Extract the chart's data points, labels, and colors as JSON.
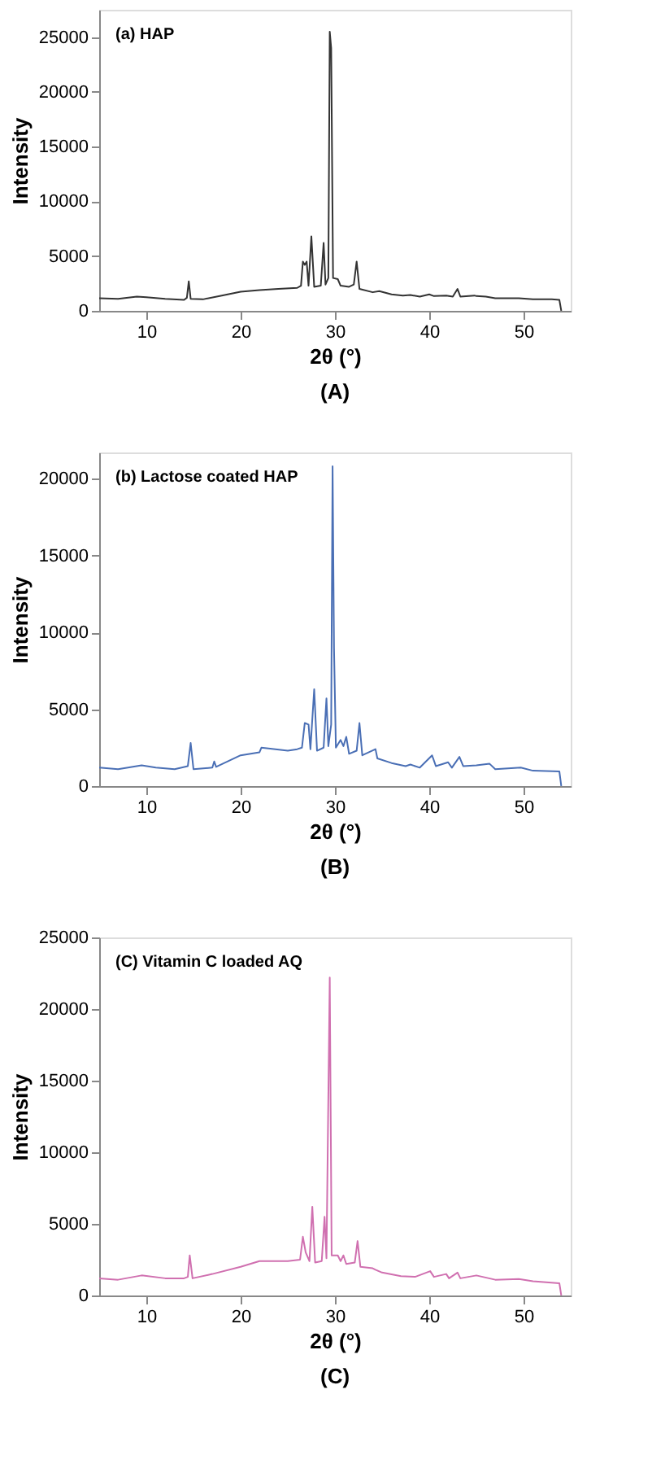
{
  "chart_data": [
    {
      "type": "line",
      "title": "(a) HAP",
      "xlabel": "2θ (°)",
      "ylabel": "Intensity",
      "annotations": [
        "(A)"
      ],
      "xlim": [
        5,
        55
      ],
      "ylim": [
        0,
        27500
      ],
      "xticks": [
        10,
        20,
        30,
        40,
        50
      ],
      "yticks": [
        0,
        5000,
        10000,
        15000,
        20000,
        25000
      ],
      "grid": false,
      "x": [
        5,
        7,
        9,
        10,
        12,
        14,
        14.3,
        14.5,
        14.7,
        16,
        18,
        20,
        22,
        24,
        26,
        26.4,
        26.6,
        26.8,
        27.0,
        27.2,
        27.5,
        27.8,
        28.5,
        28.8,
        29.0,
        29.3,
        29.45,
        29.6,
        29.8,
        30.3,
        30.6,
        31.5,
        32.0,
        32.3,
        32.6,
        34,
        34.7,
        36,
        37.2,
        38,
        39,
        40,
        40.5,
        41.8,
        42.5,
        43,
        43.3,
        44.8,
        45,
        46,
        47,
        49.5,
        51,
        53,
        53.8,
        54
      ],
      "series": [
        {
          "color": "#333333",
          "values": [
            1150,
            1100,
            1300,
            1250,
            1100,
            1000,
            1200,
            2700,
            1100,
            1050,
            1400,
            1750,
            1900,
            2000,
            2100,
            2300,
            4500,
            4200,
            4500,
            2300,
            6800,
            2200,
            2300,
            6200,
            2400,
            3000,
            25500,
            24000,
            3000,
            2900,
            2300,
            2200,
            2400,
            4500,
            2000,
            1700,
            1800,
            1500,
            1400,
            1450,
            1300,
            1500,
            1350,
            1400,
            1300,
            2000,
            1300,
            1400,
            1350,
            1300,
            1150,
            1150,
            1050,
            1050,
            1000,
            0
          ]
        }
      ]
    },
    {
      "type": "line",
      "title": "(b) Lactose coated HAP",
      "xlabel": "2θ (°)",
      "ylabel": "Intensity",
      "annotations": [
        "(B)"
      ],
      "xlim": [
        5,
        55
      ],
      "ylim": [
        0,
        21700
      ],
      "xticks": [
        10,
        20,
        30,
        40,
        50
      ],
      "yticks": [
        0,
        5000,
        10000,
        15000,
        20000
      ],
      "grid": false,
      "x": [
        5,
        7,
        9.5,
        11,
        13,
        14.4,
        14.7,
        15,
        17,
        17.2,
        17.4,
        20,
        22,
        22.2,
        25,
        26,
        26.5,
        26.8,
        27.2,
        27.4,
        27.8,
        28.1,
        28.8,
        29.1,
        29.3,
        29.6,
        29.75,
        29.9,
        30.1,
        30.6,
        30.9,
        31.2,
        31.5,
        32.3,
        32.6,
        32.9,
        34.3,
        34.5,
        36,
        37.5,
        38,
        39,
        40.3,
        40.7,
        42,
        42.4,
        43.2,
        43.6,
        45,
        46.4,
        47,
        49.7,
        51,
        53.8,
        54
      ],
      "series": [
        {
          "color": "#4a6fb5",
          "values": [
            1200,
            1100,
            1350,
            1200,
            1100,
            1300,
            2800,
            1100,
            1200,
            1600,
            1250,
            2000,
            2200,
            2500,
            2300,
            2400,
            2500,
            4100,
            4000,
            2400,
            6300,
            2300,
            2500,
            5700,
            2600,
            4000,
            20800,
            9000,
            2500,
            3000,
            2600,
            3200,
            2100,
            2300,
            4100,
            2000,
            2400,
            1800,
            1500,
            1300,
            1400,
            1200,
            2000,
            1300,
            1550,
            1200,
            1900,
            1300,
            1350,
            1450,
            1100,
            1200,
            1000,
            950,
            0
          ]
        }
      ]
    },
    {
      "type": "line",
      "title": "(C) Vitamin C loaded AQ",
      "xlabel": "2θ (°)",
      "ylabel": "Intensity",
      "annotations": [
        "(C)"
      ],
      "xlim": [
        5,
        55
      ],
      "ylim": [
        0,
        25000
      ],
      "xticks": [
        10,
        20,
        30,
        40,
        50
      ],
      "yticks": [
        0,
        5000,
        10000,
        15000,
        20000,
        25000
      ],
      "grid": false,
      "x": [
        5,
        7,
        9.5,
        12,
        14,
        14.4,
        14.6,
        14.9,
        17,
        20,
        22,
        25,
        26.3,
        26.6,
        26.9,
        27.3,
        27.6,
        27.9,
        28.6,
        28.9,
        29.1,
        29.45,
        29.65,
        30.3,
        30.6,
        30.9,
        31.2,
        32.1,
        32.4,
        32.7,
        34,
        34.3,
        35,
        37,
        38.5,
        40.1,
        40.5,
        41.8,
        42.1,
        43,
        43.3,
        45,
        47,
        49.5,
        51,
        53.8,
        54
      ],
      "series": [
        {
          "color": "#d070b0",
          "values": [
            1200,
            1100,
            1400,
            1200,
            1200,
            1300,
            2800,
            1200,
            1500,
            2000,
            2400,
            2400,
            2500,
            4100,
            3000,
            2400,
            6200,
            2300,
            2400,
            5500,
            2600,
            22200,
            2800,
            2800,
            2400,
            2800,
            2200,
            2300,
            3800,
            2000,
            1900,
            1800,
            1600,
            1350,
            1300,
            1700,
            1300,
            1500,
            1200,
            1600,
            1200,
            1400,
            1100,
            1150,
            1000,
            850,
            0
          ]
        }
      ]
    }
  ]
}
